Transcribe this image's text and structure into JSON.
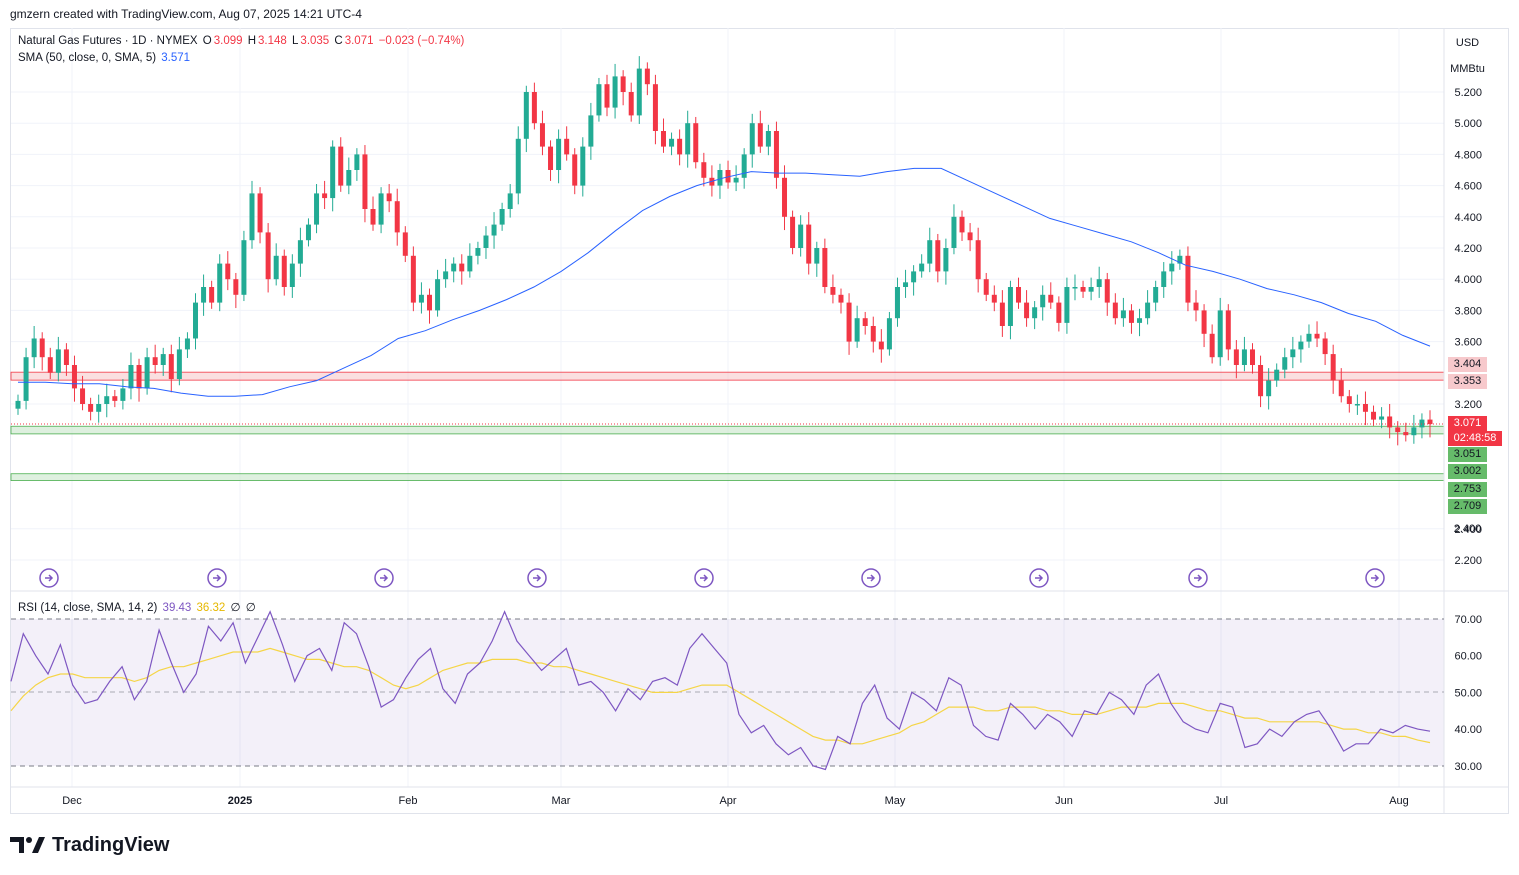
{
  "header": {
    "credit": "gmzern created with TradingView.com, Aug 07, 2025 14:21 UTC-4"
  },
  "legend": {
    "symbol": "Natural Gas Futures · 1D · NYMEX",
    "o_label": "O",
    "o_value": "3.099",
    "h_label": "H",
    "h_value": "3.148",
    "l_label": "L",
    "l_value": "3.035",
    "c_label": "C",
    "c_value": "3.071",
    "change": "−0.023 (−0.74%)",
    "sma_label": "SMA (50, close, 0, SMA, 5)",
    "sma_value": "3.571",
    "rsi_label": "RSI (14, close, SMA, 14, 2)",
    "rsi_value": "39.43",
    "rsi_ma_value": "36.32",
    "rsi_extra1": "∅",
    "rsi_extra2": "∅"
  },
  "axis": {
    "currency": "USD",
    "unit": "MMBtu",
    "price_ticks": [
      "5.200",
      "5.000",
      "4.800",
      "4.600",
      "4.400",
      "4.200",
      "4.000",
      "3.800",
      "3.600",
      "3.200",
      "2.400",
      "2.200"
    ],
    "rsi_ticks": [
      "70.00",
      "60.00",
      "50.00",
      "40.00",
      "30.00"
    ],
    "x_ticks": [
      "Dec",
      "2025",
      "Feb",
      "Mar",
      "Apr",
      "May",
      "Jun",
      "Jul",
      "Aug"
    ]
  },
  "price_tags": {
    "zone_top": "3.404",
    "zone_bottom": "3.353",
    "last_price": "3.071",
    "countdown": "02:48:58",
    "support1": "3.051",
    "support2": "3.002",
    "support3": "2.753",
    "support4": "2.709",
    "tick_2_400": "2.400"
  },
  "colors": {
    "up": "#22ab94",
    "down": "#f23645",
    "sma": "#2962ff",
    "rsi": "#7e57c2",
    "rsi_ma": "#f5d547",
    "resistance_zone": "#f7c9cc",
    "support": "#4caf50"
  },
  "footer": {
    "brand": "TradingView"
  },
  "chart_data": [
    {
      "type": "candlestick",
      "title": "Natural Gas Futures · 1D · NYMEX",
      "ylabel": "USD / MMBtu",
      "ylim": [
        2.1,
        5.55
      ],
      "x_ticks": [
        "Dec",
        "2025",
        "Feb",
        "Mar",
        "Apr",
        "May",
        "Jun",
        "Jul",
        "Aug"
      ],
      "closes": [
        3.22,
        3.5,
        3.62,
        3.5,
        3.4,
        3.55,
        3.45,
        3.3,
        3.2,
        3.15,
        3.2,
        3.25,
        3.22,
        3.3,
        3.45,
        3.3,
        3.5,
        3.45,
        3.52,
        3.36,
        3.55,
        3.62,
        3.85,
        3.95,
        3.85,
        4.1,
        4.0,
        3.9,
        4.25,
        4.55,
        4.3,
        4.0,
        4.15,
        3.95,
        4.1,
        4.25,
        4.35,
        4.55,
        4.52,
        4.85,
        4.6,
        4.7,
        4.8,
        4.45,
        4.35,
        4.55,
        4.5,
        4.3,
        4.15,
        3.85,
        3.9,
        3.8,
        4.0,
        4.05,
        4.1,
        4.05,
        4.15,
        4.2,
        4.28,
        4.35,
        4.45,
        4.55,
        4.9,
        5.2,
        5.0,
        4.85,
        4.7,
        4.9,
        4.8,
        4.6,
        4.85,
        5.05,
        5.25,
        5.1,
        5.3,
        5.2,
        5.05,
        5.35,
        5.25,
        4.95,
        4.85,
        4.9,
        4.8,
        5.0,
        4.75,
        4.65,
        4.6,
        4.7,
        4.62,
        4.65,
        4.8,
        5.0,
        4.85,
        4.95,
        4.65,
        4.4,
        4.2,
        4.35,
        4.1,
        4.2,
        3.95,
        3.9,
        3.85,
        3.6,
        3.75,
        3.7,
        3.6,
        3.55,
        3.75,
        3.95,
        3.98,
        4.05,
        4.1,
        4.25,
        4.05,
        4.2,
        4.4,
        4.3,
        4.25,
        4.0,
        3.9,
        3.85,
        3.7,
        3.95,
        3.85,
        3.75,
        3.82,
        3.9,
        3.85,
        3.72,
        3.95,
        3.95,
        3.92,
        3.95,
        4.0,
        3.85,
        3.75,
        3.8,
        3.72,
        3.75,
        3.85,
        3.95,
        4.05,
        4.1,
        4.15,
        3.85,
        3.8,
        3.65,
        3.5,
        3.8,
        3.55,
        3.45,
        3.55,
        3.45,
        3.25,
        3.35,
        3.42,
        3.5,
        3.55,
        3.6,
        3.65,
        3.62,
        3.52,
        3.35,
        3.25,
        3.2,
        3.2,
        3.15,
        3.1,
        3.12,
        3.05,
        3.02,
        3.0,
        3.05,
        3.1,
        3.071
      ],
      "sma_50": [
        3.34,
        3.34,
        3.33,
        3.33,
        3.31,
        3.3,
        3.27,
        3.25,
        3.25,
        3.26,
        3.31,
        3.35,
        3.43,
        3.51,
        3.62,
        3.67,
        3.74,
        3.8,
        3.87,
        3.95,
        4.05,
        4.17,
        4.31,
        4.44,
        4.53,
        4.6,
        4.65,
        4.69,
        4.68,
        4.68,
        4.67,
        4.66,
        4.69,
        4.71,
        4.71,
        4.63,
        4.55,
        4.47,
        4.39,
        4.34,
        4.29,
        4.24,
        4.17,
        4.09,
        4.05,
        4.0,
        3.94,
        3.9,
        3.85,
        3.78,
        3.73,
        3.64,
        3.571
      ],
      "horizontal_levels": [
        {
          "label": "3.404",
          "value": 3.404
        },
        {
          "label": "3.353",
          "value": 3.353
        },
        {
          "label": "3.051",
          "value": 3.051
        },
        {
          "label": "3.002",
          "value": 3.002
        },
        {
          "label": "2.753",
          "value": 2.753
        },
        {
          "label": "2.709",
          "value": 2.709
        }
      ],
      "last_price": 3.071
    },
    {
      "type": "line",
      "title": "RSI (14, close, SMA, 14, 2)",
      "ylim": [
        27,
        73
      ],
      "bands": [
        30,
        50,
        70
      ],
      "series": [
        {
          "name": "RSI",
          "values": [
            53,
            66,
            60,
            55,
            63,
            52,
            47,
            48,
            53,
            57,
            48,
            53,
            67,
            58,
            50,
            55,
            68,
            64,
            69,
            58,
            65,
            72,
            63,
            53,
            60,
            62,
            56,
            69,
            66,
            57,
            46,
            48,
            54,
            59,
            62,
            51,
            47,
            55,
            58,
            64,
            72,
            64,
            60,
            56,
            59,
            62,
            52,
            53,
            50,
            45,
            51,
            48,
            53,
            54,
            52,
            62,
            66,
            62,
            58,
            44,
            39,
            41,
            36,
            33,
            35,
            30,
            29,
            38,
            36,
            47,
            52,
            43,
            40,
            50,
            48,
            45,
            54,
            52,
            41,
            38,
            37,
            47,
            44,
            40,
            44,
            42,
            38,
            45,
            44,
            50,
            48,
            44,
            52,
            55,
            47,
            42,
            40,
            39,
            47,
            46,
            35,
            36,
            40,
            38,
            42,
            44,
            45,
            40,
            34,
            36,
            36,
            40,
            39,
            41,
            40,
            39.43
          ]
        },
        {
          "name": "RSI MA",
          "values": [
            45,
            49,
            52,
            54,
            55,
            55,
            54,
            54,
            54,
            54,
            53,
            54,
            56,
            57,
            57,
            58,
            59,
            60,
            61,
            61,
            61,
            62,
            61,
            60,
            59,
            59,
            58,
            57,
            57,
            56,
            54,
            52,
            51,
            52,
            54,
            56,
            57,
            58,
            58,
            59,
            59,
            59,
            58,
            58,
            57,
            57,
            56,
            55,
            54,
            53,
            52,
            51,
            50,
            50,
            50,
            51,
            52,
            52,
            52,
            50,
            48,
            46,
            44,
            42,
            40,
            38,
            37,
            37,
            36,
            36,
            37,
            38,
            39,
            41,
            42,
            44,
            46,
            46,
            46,
            45,
            45,
            46,
            46,
            46,
            45,
            45,
            44,
            44,
            44,
            45,
            46,
            46,
            46,
            47,
            47,
            47,
            46,
            45,
            45,
            44,
            43,
            43,
            42,
            42,
            42,
            42,
            42,
            41,
            40,
            40,
            39,
            39,
            38,
            38,
            37,
            36.32
          ]
        }
      ]
    }
  ]
}
